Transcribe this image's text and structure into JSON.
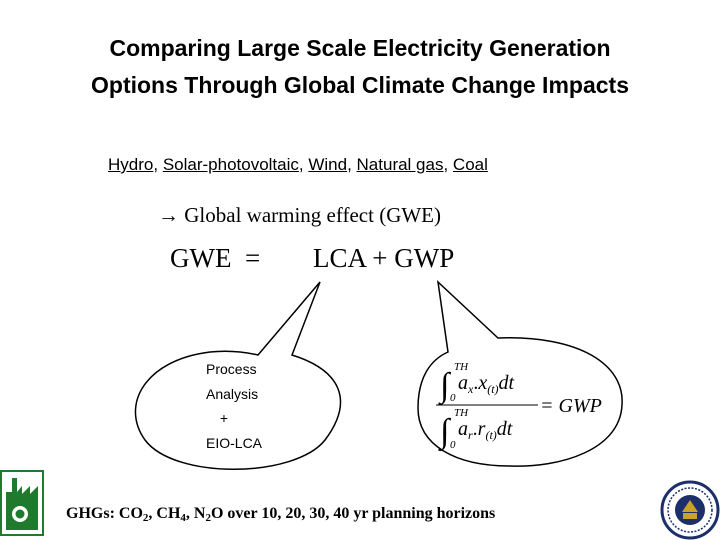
{
  "slide": {
    "title_line1": "Comparing Large Scale Electricity Generation",
    "title_line2": "Options Through Global Climate Change Impacts"
  },
  "options": {
    "items": [
      "Hydro",
      "Solar-photovoltaic",
      "Wind",
      "Natural gas",
      "Coal"
    ],
    "separator": ", "
  },
  "gwe": {
    "arrow": "→",
    "text": "Global warming effect (GWE)"
  },
  "equation": {
    "left": "GWE  =",
    "right": "LCA + GWP"
  },
  "bubble_left": {
    "line1": "Process",
    "line2": "Analysis",
    "line3": "+",
    "line4": "EIO-LCA"
  },
  "formula": {
    "upper_limit": "TH",
    "lower_limit": "0",
    "num_a": "a",
    "num_a_sub": "x",
    "num_dot": ".",
    "num_x": "x",
    "num_x_sub": "(t)",
    "dt": "dt",
    "den_a": "a",
    "den_a_sub": "r",
    "den_dot": ".",
    "den_r": "r",
    "den_r_sub": "(t)",
    "equals": "= GWP"
  },
  "ghg": {
    "prefix": "GHGs: CO",
    "co2_sub": "2",
    "ch4": ", CH",
    "ch4_sub": "4",
    "n2o": ", N",
    "n2o_sub": "2",
    "n2o_o": "O over 10, 20, 30, 40 yr planning horizons"
  },
  "colors": {
    "logo_green": "#1f7a2e",
    "seal_blue": "#1c2f6b",
    "seal_gold": "#c9a227"
  }
}
